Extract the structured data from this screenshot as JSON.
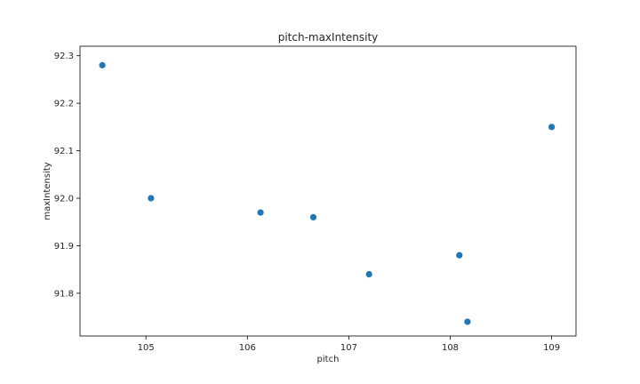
{
  "chart_data": {
    "type": "scatter",
    "title": "pitch-maxIntensity",
    "xlabel": "pitch",
    "ylabel": "maxIntensity",
    "xlim": [
      104.35,
      109.24
    ],
    "ylim": [
      91.71,
      92.32
    ],
    "xticks": [
      105,
      106,
      107,
      108,
      109
    ],
    "xtick_labels": [
      "105",
      "106",
      "107",
      "108",
      "109"
    ],
    "yticks": [
      91.8,
      91.9,
      92.0,
      92.1,
      92.2,
      92.3
    ],
    "ytick_labels": [
      "91.8",
      "91.9",
      "92.0",
      "92.1",
      "92.2",
      "92.3"
    ],
    "grid": false,
    "point_color": "#1f77b4",
    "points": [
      {
        "x": 104.57,
        "y": 92.28
      },
      {
        "x": 105.05,
        "y": 92.0
      },
      {
        "x": 106.13,
        "y": 91.97
      },
      {
        "x": 106.65,
        "y": 91.96
      },
      {
        "x": 107.2,
        "y": 91.84
      },
      {
        "x": 108.09,
        "y": 91.88
      },
      {
        "x": 108.17,
        "y": 91.74
      },
      {
        "x": 109.0,
        "y": 92.15
      }
    ]
  }
}
